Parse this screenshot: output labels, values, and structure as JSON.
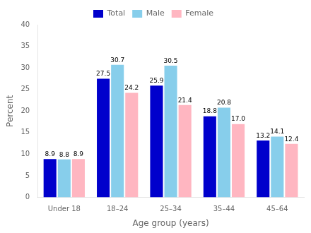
{
  "chart_data": {
    "type": "bar",
    "xlabel": "Age group (years)",
    "ylabel": "Percent",
    "categories": [
      "Under 18",
      "18–24",
      "25–34",
      "35–44",
      "45–64"
    ],
    "series": [
      {
        "name": "Total",
        "color": "#0000cc",
        "values": [
          8.9,
          27.5,
          25.9,
          18.8,
          13.2
        ]
      },
      {
        "name": "Male",
        "color": "#87ceeb",
        "values": [
          8.8,
          30.7,
          30.5,
          20.8,
          14.1
        ]
      },
      {
        "name": "Female",
        "color": "#ffb6c1",
        "values": [
          8.9,
          24.2,
          21.4,
          17.0,
          12.4
        ],
        "value_labels": [
          "8.9",
          "24.2",
          "21.4",
          "17.0",
          "12.4"
        ]
      }
    ],
    "ylim": [
      0,
      40
    ],
    "yticks": [
      0,
      5,
      10,
      15,
      20,
      25,
      30,
      35,
      40
    ],
    "grid": false,
    "legend": "top",
    "data_labels": true
  }
}
